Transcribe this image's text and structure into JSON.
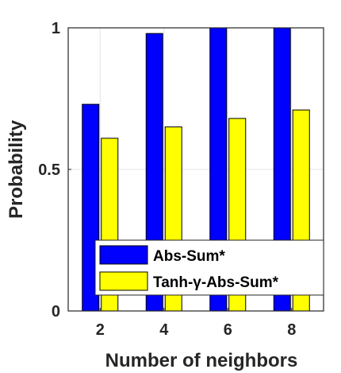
{
  "chart_data": {
    "type": "bar",
    "categories": [
      "2",
      "4",
      "6",
      "8"
    ],
    "series": [
      {
        "name": "Abs-Sum*",
        "values": [
          0.73,
          0.98,
          1.0,
          1.0
        ],
        "color": "#0000ff"
      },
      {
        "name": "Tanh-γ-Abs-Sum*",
        "values": [
          0.61,
          0.65,
          0.68,
          0.71
        ],
        "color": "#ffff00"
      }
    ],
    "title": "",
    "xlabel": "Number of neighbors",
    "ylabel": "Probability",
    "ylim": [
      0,
      1
    ],
    "yticks": [
      0,
      0.5,
      1
    ],
    "ytick_labels": [
      "0",
      "0.5",
      "1"
    ],
    "grid": true,
    "legend_position": "bottom-right"
  }
}
